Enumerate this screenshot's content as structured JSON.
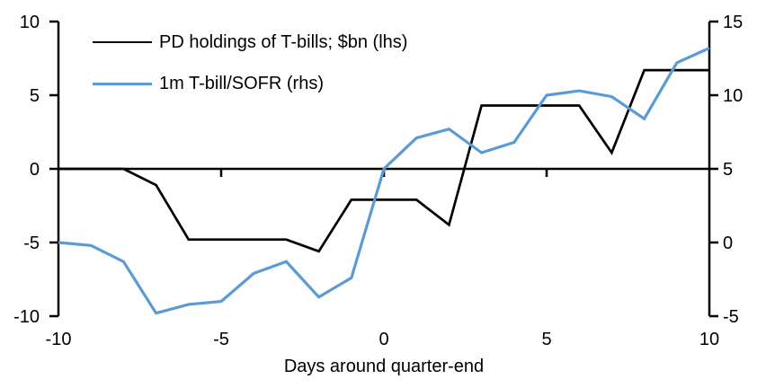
{
  "chart_data": {
    "type": "line",
    "title": "",
    "xlabel": "Days around quarter-end",
    "ylabel_left": "",
    "ylabel_right": "",
    "grid": false,
    "legend_position": "top-left",
    "x": [
      -10,
      -9,
      -8,
      -7,
      -6,
      -5,
      -4,
      -3,
      -2,
      -1,
      0,
      1,
      2,
      3,
      4,
      5,
      6,
      7,
      8,
      9,
      10
    ],
    "x_ticks": [
      -10,
      -5,
      0,
      5,
      10
    ],
    "left_axis": {
      "min": -10,
      "max": 10,
      "ticks": [
        10,
        5,
        0,
        -5,
        -10
      ]
    },
    "right_axis": {
      "min": -5,
      "max": 15,
      "ticks": [
        15,
        10,
        5,
        0,
        -5
      ]
    },
    "series": [
      {
        "name": "PD holdings of T-bills; $bn (lhs)",
        "axis": "left",
        "color": "#000000",
        "values": [
          0,
          0,
          0,
          -1.1,
          -4.8,
          -4.8,
          -4.8,
          -4.8,
          -5.6,
          -2.1,
          -2.1,
          -2.1,
          -3.8,
          4.3,
          4.3,
          4.3,
          4.3,
          1.1,
          6.7,
          6.7,
          6.7
        ]
      },
      {
        "name": "1m T-bill/SOFR (rhs)",
        "axis": "right",
        "color": "#5b9bd5",
        "values": [
          0,
          -0.2,
          -1.3,
          -4.8,
          -4.2,
          -4.0,
          -2.1,
          -1.3,
          -3.7,
          -2.4,
          5.0,
          7.1,
          7.7,
          6.1,
          6.8,
          10.0,
          10.3,
          9.9,
          8.4,
          12.2,
          13.2
        ]
      }
    ]
  }
}
